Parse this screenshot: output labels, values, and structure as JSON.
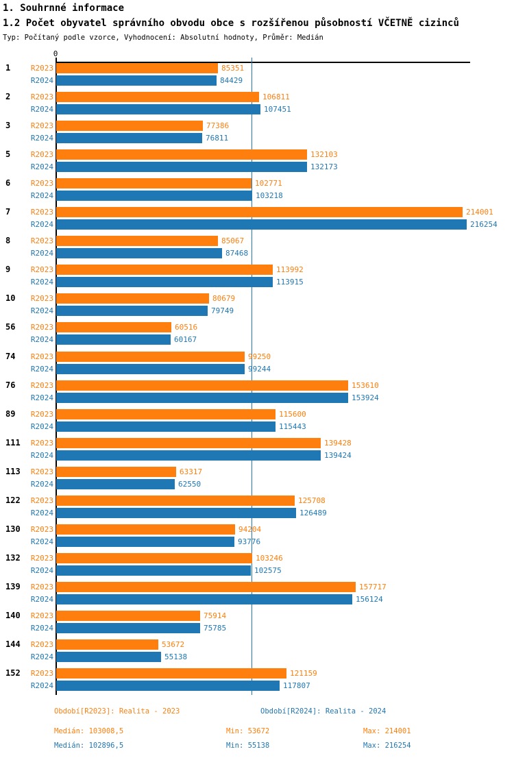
{
  "header": {
    "title1": "1. Souhrnné informace",
    "title2": "1.2 Počet obyvatel správního obvodu obce s rozšířenou působností VČETNĚ cizinců",
    "subtitle": "Typ: Počítaný podle vzorce, Vyhodnocení: Absolutní hodnoty, Průměr: Medián"
  },
  "chart_data": {
    "type": "bar",
    "orientation": "horizontal",
    "title": "1.2 Počet obyvatel správního obvodu obce s rozšířenou působností VČETNĚ cizinců",
    "categories": [
      "1",
      "2",
      "3",
      "5",
      "6",
      "7",
      "8",
      "9",
      "10",
      "56",
      "74",
      "76",
      "89",
      "111",
      "113",
      "122",
      "130",
      "132",
      "139",
      "140",
      "144",
      "152"
    ],
    "series": [
      {
        "name": "R2023",
        "color": "#ff7f0e",
        "values": [
          85351,
          106811,
          77386,
          132103,
          102771,
          214001,
          85067,
          113992,
          80679,
          60516,
          99250,
          153610,
          115600,
          139428,
          63317,
          125708,
          94204,
          103246,
          157717,
          75914,
          53672,
          121159
        ]
      },
      {
        "name": "R2024",
        "color": "#1f77b4",
        "values": [
          84429,
          107451,
          76811,
          132173,
          103218,
          216254,
          87468,
          113915,
          79749,
          60167,
          99244,
          153924,
          115443,
          139424,
          62550,
          126489,
          93776,
          102575,
          156124,
          75785,
          55138,
          117807
        ]
      }
    ],
    "xlabel": "",
    "ylabel": "",
    "xlim": [
      0,
      218700
    ],
    "grid": false,
    "origin_tick_label": "0",
    "median_reference_lines": [
      103008.5,
      102896.5
    ],
    "legend_position": "bottom",
    "stats": {
      "R2023": {
        "median": 103008.5,
        "min": 53672,
        "max": 214001
      },
      "R2024": {
        "median": 102896.5,
        "min": 55138,
        "max": 216254
      }
    }
  },
  "legend": {
    "period_r2023": "Období[R2023]: Realita - 2023",
    "period_r2024": "Období[R2024]: Realita - 2024",
    "r2023": {
      "median": "Medián: 103008,5",
      "min": "Min: 53672",
      "max": "Max: 214001"
    },
    "r2024": {
      "median": "Medián: 102896,5",
      "min": "Min: 55138",
      "max": "Max: 216254"
    }
  },
  "colors": {
    "r2023": "#ff7f0e",
    "r2024": "#1f77b4",
    "axis": "#000000",
    "median_line": "#1f77b4"
  }
}
